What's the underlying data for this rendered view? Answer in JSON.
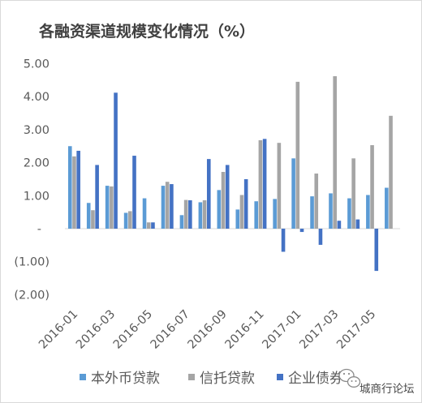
{
  "chart_data": {
    "type": "bar",
    "title": "各融资渠道规模变化情况（%）",
    "xlabel": "",
    "ylabel": "",
    "categories": [
      "2016-01",
      "",
      "2016-03",
      "",
      "2016-05",
      "",
      "2016-07",
      "",
      "2016-09",
      "",
      "2016-11",
      "",
      "2017-01",
      "",
      "2017-03",
      "",
      "2017-05",
      ""
    ],
    "series": [
      {
        "name": "本外币贷款",
        "color": "#5B9BD5",
        "values": [
          2.5,
          0.78,
          1.3,
          0.48,
          0.92,
          1.3,
          0.41,
          0.8,
          1.17,
          0.58,
          0.83,
          0.9,
          2.13,
          0.98,
          1.07,
          0.92,
          1.02,
          1.24
        ]
      },
      {
        "name": "信托贷款",
        "color": "#A5A5A5",
        "values": [
          2.19,
          0.56,
          1.28,
          0.53,
          0.19,
          1.42,
          0.87,
          0.86,
          1.72,
          1.02,
          2.68,
          2.6,
          4.45,
          1.67,
          4.62,
          2.13,
          2.53,
          3.42
        ]
      },
      {
        "name": "企业债券",
        "color": "#4472C4",
        "values": [
          2.36,
          1.93,
          4.12,
          2.21,
          0.19,
          1.35,
          0.86,
          2.11,
          1.93,
          1.5,
          2.72,
          -0.7,
          -0.1,
          -0.49,
          0.24,
          0.28,
          -1.28,
          null
        ]
      }
    ],
    "ylim": [
      -2,
      5
    ],
    "yticks": [
      5,
      4,
      3,
      2,
      1,
      0,
      -1,
      -2
    ],
    "ytick_labels": [
      "5.00",
      "4.00",
      "3.00",
      "2.00",
      "1.00",
      "-",
      "(1.00)",
      "(2.00)"
    ],
    "grid": false,
    "legend": "bottom"
  },
  "watermark": {
    "text": "城商行论坛",
    "icon": "wechat-logo-icon"
  }
}
